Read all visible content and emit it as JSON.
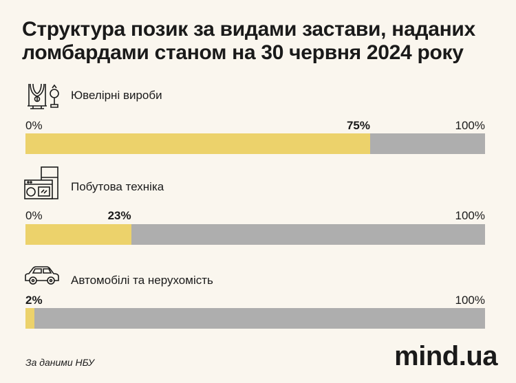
{
  "title": "Структура позик за видами застави, наданих ломбардами станом на 30 червня 2024 року",
  "source": "За даними НБУ",
  "brand": "mind.ua",
  "icons": [
    "jewelry-icon",
    "appliances-icon",
    "car-icon"
  ],
  "colors": {
    "fill": "#ecd26b",
    "track": "#aeaeae",
    "background": "#faf6ee"
  },
  "chart_data": {
    "type": "bar",
    "orientation": "horizontal",
    "categories": [
      "Ювелірні вироби",
      "Побутова техніка",
      "Автомобілі та нерухомість"
    ],
    "values": [
      75,
      23,
      2
    ],
    "value_labels": [
      "75%",
      "23%",
      "2%"
    ],
    "xlim": [
      0,
      100
    ],
    "tick_start_labels": [
      "0%",
      "0%",
      ""
    ],
    "tick_end_labels": [
      "100%",
      "100%",
      "100%"
    ],
    "title": "Структура позик за видами застави, наданих ломбардами станом на 30 червня 2024 року"
  }
}
